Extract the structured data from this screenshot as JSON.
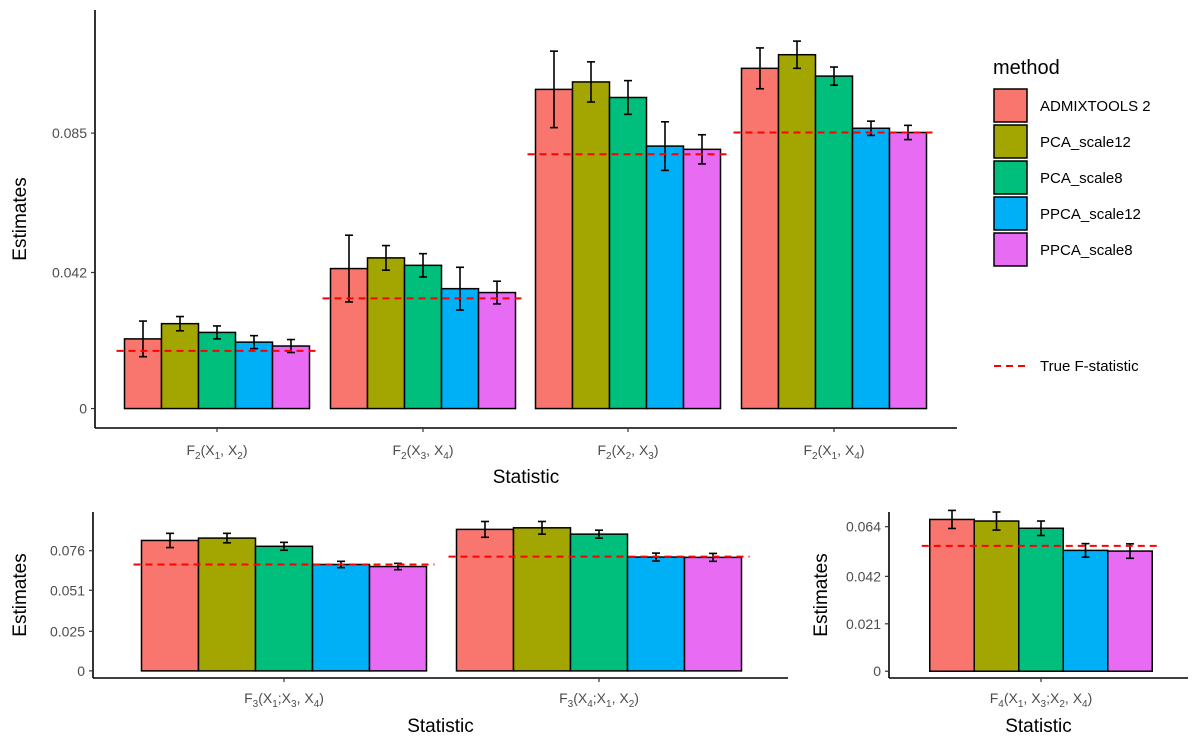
{
  "colors": {
    "ADMIXTOOLS 2": "#F8766D",
    "PCA_scale12": "#A3A500",
    "PCA_scale8": "#00BF7D",
    "PPCA_scale12": "#00B0F6",
    "PPCA_scale8": "#E76BF3",
    "true_line": "#FF0000"
  },
  "legend": {
    "title": "method",
    "items": [
      "ADMIXTOOLS 2",
      "PCA_scale12",
      "PCA_scale8",
      "PPCA_scale12",
      "PPCA_scale8"
    ],
    "true_label": "True F-statistic"
  },
  "chart_data": [
    {
      "type": "bar",
      "id": "f2",
      "xlabel": "Statistic",
      "ylabel": "Estimates",
      "ylim": [
        -0.006,
        0.123
      ],
      "yticks": [
        0,
        0.042,
        0.085
      ],
      "yticklabels": [
        "0",
        "0.042",
        "0.085"
      ],
      "categories": [
        {
          "base": "F",
          "sub": "2",
          "args": [
            [
              "X",
              "1"
            ],
            ", ",
            [
              "X",
              "2"
            ]
          ]
        },
        {
          "base": "F",
          "sub": "2",
          "args": [
            [
              "X",
              "3"
            ],
            ", ",
            [
              "X",
              "4"
            ]
          ]
        },
        {
          "base": "F",
          "sub": "2",
          "args": [
            [
              "X",
              "2"
            ],
            ", ",
            [
              "X",
              "3"
            ]
          ]
        },
        {
          "base": "F",
          "sub": "2",
          "args": [
            [
              "X",
              "1"
            ],
            ", ",
            [
              "X",
              "4"
            ]
          ]
        }
      ],
      "series": [
        {
          "name": "ADMIXTOOLS 2",
          "values": [
            0.0215,
            0.0432,
            0.0985,
            0.105
          ],
          "errors": [
            0.0055,
            0.0103,
            0.0118,
            0.0063
          ]
        },
        {
          "name": "PCA_scale12",
          "values": [
            0.0262,
            0.0465,
            0.1008,
            0.1092
          ],
          "errors": [
            0.0022,
            0.0038,
            0.0062,
            0.0042
          ]
        },
        {
          "name": "PCA_scale8",
          "values": [
            0.0235,
            0.0442,
            0.096,
            0.1026
          ],
          "errors": [
            0.002,
            0.0036,
            0.0052,
            0.0028
          ]
        },
        {
          "name": "PPCA_scale12",
          "values": [
            0.0205,
            0.037,
            0.081,
            0.0865
          ],
          "errors": [
            0.002,
            0.0066,
            0.0075,
            0.0022
          ]
        },
        {
          "name": "PPCA_scale8",
          "values": [
            0.0193,
            0.0358,
            0.08,
            0.0852
          ],
          "errors": [
            0.002,
            0.0035,
            0.0045,
            0.0022
          ]
        }
      ],
      "true_values": [
        0.0178,
        0.034,
        0.0785,
        0.0852
      ]
    },
    {
      "type": "bar",
      "id": "f3",
      "xlabel": "Statistic",
      "ylabel": "Estimates",
      "ylim": [
        -0.0045,
        0.1005
      ],
      "yticks": [
        0,
        0.025,
        0.051,
        0.076
      ],
      "yticklabels": [
        "0",
        "0.025",
        "0.051",
        "0.076"
      ],
      "categories": [
        {
          "base": "F",
          "sub": "3",
          "args": [
            [
              "X",
              "1"
            ],
            ";",
            [
              "X",
              "3"
            ],
            ", ",
            [
              "X",
              "4"
            ]
          ]
        },
        {
          "base": "F",
          "sub": "3",
          "args": [
            [
              "X",
              "4"
            ],
            ";",
            [
              "X",
              "1"
            ],
            ", ",
            [
              "X",
              "2"
            ]
          ]
        }
      ],
      "series": [
        {
          "name": "ADMIXTOOLS 2",
          "values": [
            0.0825,
            0.0895
          ],
          "errors": [
            0.0045,
            0.005
          ]
        },
        {
          "name": "PCA_scale12",
          "values": [
            0.084,
            0.0905
          ],
          "errors": [
            0.003,
            0.004
          ]
        },
        {
          "name": "PCA_scale8",
          "values": [
            0.0788,
            0.0865
          ],
          "errors": [
            0.0025,
            0.0025
          ]
        },
        {
          "name": "PPCA_scale12",
          "values": [
            0.0673,
            0.072
          ],
          "errors": [
            0.002,
            0.0025
          ]
        },
        {
          "name": "PPCA_scale8",
          "values": [
            0.066,
            0.0718
          ],
          "errors": [
            0.002,
            0.0025
          ]
        }
      ],
      "true_values": [
        0.0673,
        0.0723
      ]
    },
    {
      "type": "bar",
      "id": "f4",
      "xlabel": "Statistic",
      "ylabel": "Estimates",
      "ylim": [
        -0.003,
        0.0705
      ],
      "yticks": [
        0,
        0.021,
        0.042,
        0.064
      ],
      "yticklabels": [
        "0",
        "0.021",
        "0.042",
        "0.064"
      ],
      "categories": [
        {
          "base": "F",
          "sub": "4",
          "args": [
            [
              "X",
              "1"
            ],
            ", ",
            [
              "X",
              "3"
            ],
            ";",
            [
              "X",
              "2"
            ],
            ", ",
            [
              "X",
              "4"
            ]
          ]
        }
      ],
      "series": [
        {
          "name": "ADMIXTOOLS 2",
          "values": [
            0.0672
          ],
          "errors": [
            0.004
          ]
        },
        {
          "name": "PCA_scale12",
          "values": [
            0.0665
          ],
          "errors": [
            0.004
          ]
        },
        {
          "name": "PCA_scale8",
          "values": [
            0.0633
          ],
          "errors": [
            0.0032
          ]
        },
        {
          "name": "PPCA_scale12",
          "values": [
            0.0535
          ],
          "errors": [
            0.003
          ]
        },
        {
          "name": "PPCA_scale8",
          "values": [
            0.0532
          ],
          "errors": [
            0.0032
          ]
        }
      ],
      "true_values": [
        0.0555
      ]
    }
  ]
}
